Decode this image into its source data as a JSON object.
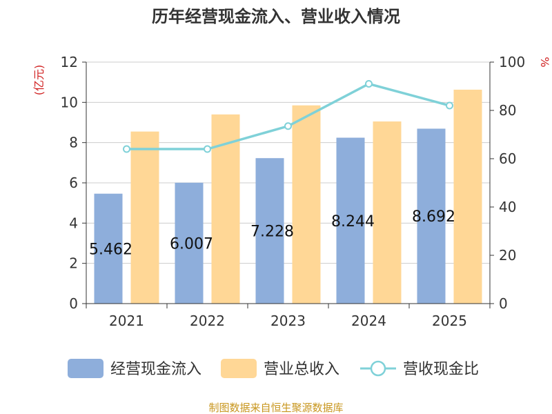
{
  "chart_data": {
    "type": "bar",
    "title": "历年经营现金流入、营业收入情况",
    "categories": [
      "2021",
      "2022",
      "2023",
      "2024",
      "2025"
    ],
    "series": [
      {
        "name": "经营现金流入",
        "type": "bar",
        "axis": "left",
        "color": "#8eaedb",
        "values": [
          5.462,
          6.007,
          7.228,
          8.244,
          8.692
        ],
        "data_labels": [
          "5.462",
          "6.007",
          "7.228",
          "8.244",
          "8.692"
        ]
      },
      {
        "name": "营业总收入",
        "type": "bar",
        "axis": "left",
        "color": "#ffd796",
        "values": [
          8.55,
          9.4,
          9.85,
          9.05,
          10.63
        ]
      },
      {
        "name": "营收现金比",
        "type": "line",
        "axis": "right",
        "color": "#7fd1d8",
        "values": [
          64,
          64,
          73.5,
          91,
          82
        ]
      }
    ],
    "y_left": {
      "unit": "(亿元)",
      "range": [
        0,
        12
      ],
      "ticks": [
        0,
        2,
        4,
        6,
        8,
        10,
        12
      ]
    },
    "y_right": {
      "unit": "%",
      "range": [
        0,
        100
      ],
      "ticks": [
        0,
        20,
        40,
        60,
        80,
        100
      ]
    },
    "grid": true,
    "legend_position": "bottom"
  },
  "footer": "制图数据来自恒生聚源数据库"
}
